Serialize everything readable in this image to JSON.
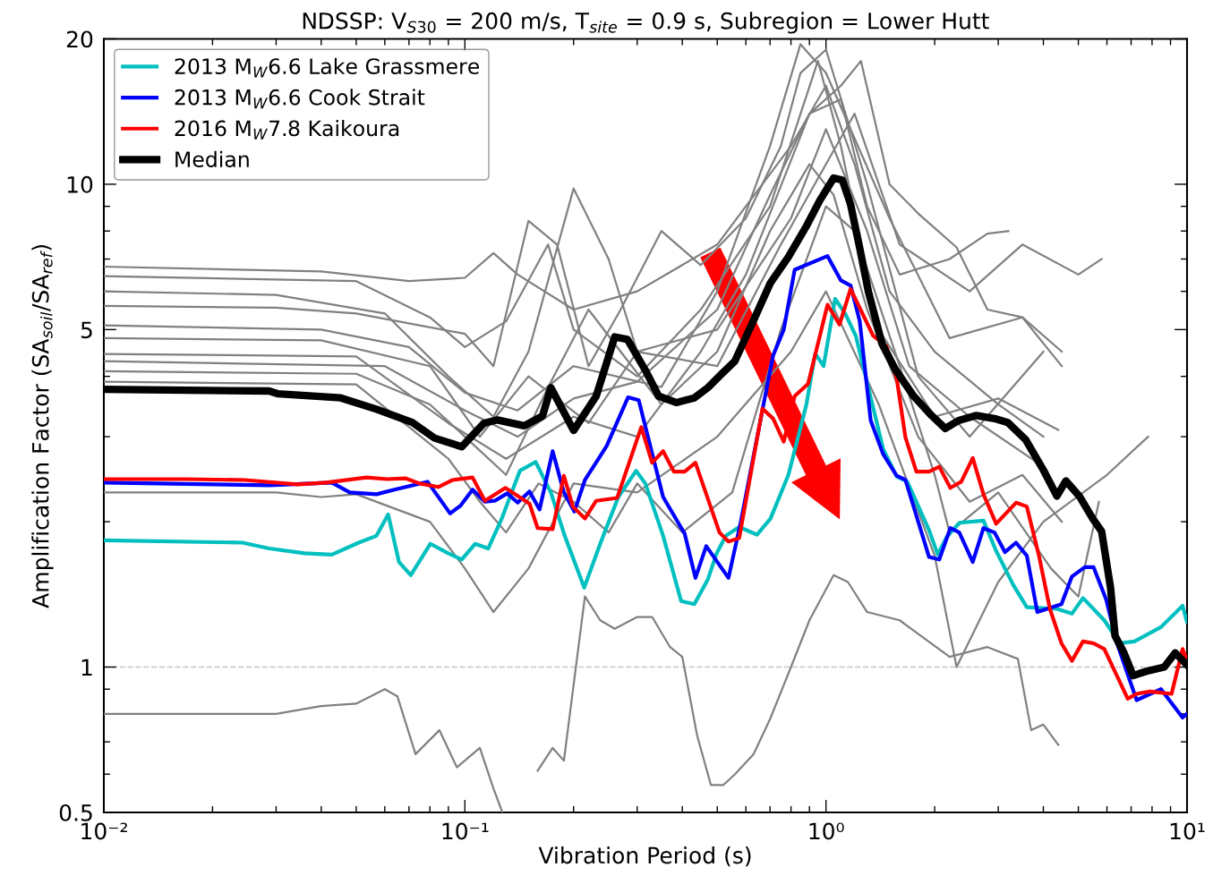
{
  "chart_data": {
    "type": "line",
    "title": "NDSSP: V$_{S30}$ = 200 m/s, T$_{site}$ = 0.9 s, Subregion = Lower Hutt",
    "xlabel": "Vibration Period (s)",
    "ylabel": "Amplification Factor (SA$_{soil}$/SA$_{ref}$)",
    "log": "xy",
    "xlim": [
      0.01,
      10
    ],
    "ylim": [
      0.5,
      20
    ],
    "xticks": [
      {
        "value": 0.01,
        "label": "10⁻²"
      },
      {
        "value": 0.1,
        "label": "10⁻¹"
      },
      {
        "value": 1,
        "label": "10⁰"
      },
      {
        "value": 10,
        "label": "10¹"
      }
    ],
    "yticks": [
      0.5,
      1,
      5,
      10,
      20
    ],
    "grid": false,
    "legend": "top left",
    "marker": "none",
    "line_style": "solid",
    "ref_lines": [
      {
        "axis": "y",
        "value": 1,
        "color": "#c8c8c8",
        "line_style": "dashed"
      }
    ],
    "series": [
      {
        "color": "#808080",
        "x": [
          0.01,
          0.04,
          0.07,
          0.1,
          0.12,
          0.14,
          0.2,
          0.3,
          0.5,
          0.8,
          1.0,
          1.2,
          1.5,
          2,
          3,
          4
        ],
        "values": [
          6.75,
          6.6,
          6.3,
          6.4,
          7.2,
          6.5,
          5.5,
          6.0,
          7.5,
          12,
          16,
          11,
          6,
          4.5,
          3.5,
          3.0
        ]
      },
      {
        "color": "#808080",
        "x": [
          0.01,
          0.05,
          0.08,
          0.1,
          0.13,
          0.17,
          0.2,
          0.3,
          0.45,
          0.7,
          0.95,
          1.1,
          1.4,
          2,
          3,
          4.4
        ],
        "values": [
          6.45,
          6.3,
          5.3,
          4.6,
          5.2,
          7.5,
          5.0,
          4.0,
          5.5,
          9,
          18,
          12,
          5,
          3.3,
          3.6,
          3.1
        ]
      },
      {
        "color": "#808080",
        "x": [
          0.01,
          0.03,
          0.06,
          0.09,
          0.12,
          0.15,
          0.2,
          0.25,
          0.3,
          0.5,
          0.8,
          1.0,
          1.3,
          1.7,
          2.5,
          4
        ],
        "values": [
          6.0,
          5.9,
          5.4,
          4.0,
          3.3,
          4.5,
          9.8,
          7.0,
          4.5,
          5.0,
          8.5,
          13,
          8,
          4.2,
          3.3,
          2.6
        ]
      },
      {
        "color": "#808080",
        "x": [
          0.01,
          0.04,
          0.07,
          0.1,
          0.14,
          0.2,
          0.35,
          0.5,
          0.7,
          0.85,
          1.0,
          1.5,
          2.2,
          3.5,
          4.5
        ],
        "values": [
          5.1,
          5.0,
          4.6,
          3.7,
          3.4,
          4.2,
          3.8,
          6.0,
          12,
          19.5,
          17,
          8.5,
          4.8,
          5.3,
          4.5
        ]
      },
      {
        "color": "#808080",
        "x": [
          0.01,
          0.04,
          0.08,
          0.11,
          0.15,
          0.22,
          0.3,
          0.5,
          0.75,
          1.0,
          1.2,
          1.6,
          2.5,
          3.5,
          5,
          5.8
        ],
        "values": [
          4.8,
          4.75,
          4.2,
          3.0,
          4.0,
          3.2,
          4.5,
          4.2,
          7.5,
          11,
          14,
          7.5,
          6.0,
          7.5,
          6.5,
          7.0
        ]
      },
      {
        "color": "#808080",
        "x": [
          0.01,
          0.05,
          0.09,
          0.13,
          0.2,
          0.3,
          0.45,
          0.6,
          0.9,
          1.1,
          1.3,
          1.6,
          2.2,
          2.8,
          3.2
        ],
        "values": [
          4.45,
          4.4,
          3.2,
          2.7,
          3.3,
          3.0,
          4.5,
          6.5,
          14,
          15,
          9,
          6.5,
          7.0,
          7.9,
          8.0
        ]
      },
      {
        "color": "#808080",
        "x": [
          0.01,
          0.03,
          0.04,
          0.05,
          0.08,
          0.1,
          0.12,
          0.15,
          0.2,
          0.3,
          0.5,
          0.8,
          1.0,
          1.4,
          2,
          2.3,
          3,
          4,
          6,
          7.8
        ],
        "values": [
          2.3,
          2.3,
          2.25,
          2.28,
          2.0,
          1.6,
          1.3,
          1.6,
          2.4,
          2.3,
          3.0,
          4.5,
          6.0,
          3.5,
          1.7,
          1.0,
          1.5,
          2.0,
          2.5,
          3.0
        ]
      },
      {
        "color": "#808080",
        "x": [
          0.01,
          0.03,
          0.04,
          0.05,
          0.06,
          0.065,
          0.073,
          0.085,
          0.095,
          0.11,
          0.12,
          0.127,
          0.14,
          0.159,
          0.175,
          0.188,
          0.215,
          0.237,
          0.26,
          0.3,
          0.33,
          0.37,
          0.4,
          0.44,
          0.48,
          0.52,
          0.56,
          0.63,
          0.7,
          0.8,
          0.9,
          1.05,
          1.15,
          1.3,
          1.6,
          2.2,
          2.8,
          3.4,
          3.7,
          4.0,
          4.4
        ],
        "values": [
          0.8,
          0.8,
          0.83,
          0.84,
          0.9,
          0.87,
          0.66,
          0.74,
          0.62,
          0.68,
          0.56,
          0.5,
          null,
          0.61,
          0.68,
          0.64,
          1.4,
          1.25,
          1.2,
          1.27,
          1.27,
          1.1,
          1.05,
          0.72,
          0.57,
          0.57,
          0.6,
          0.66,
          0.78,
          1.0,
          1.25,
          1.55,
          1.5,
          1.3,
          1.25,
          1.05,
          1.1,
          1.04,
          0.74,
          0.76,
          0.69
        ]
      },
      {
        "color": "#808080",
        "x": [
          0.01,
          0.05,
          0.08,
          0.1,
          0.13,
          0.17,
          0.22,
          0.27,
          0.35,
          0.5,
          0.7,
          0.9,
          1.05,
          1.3,
          1.8,
          2.5,
          3.5,
          4.5
        ],
        "values": [
          4.1,
          4.05,
          3.5,
          3.0,
          2.5,
          3.8,
          5.5,
          4.5,
          3.5,
          4.5,
          8,
          11,
          9.5,
          5.5,
          3.0,
          2.2,
          2.5,
          2.0
        ]
      },
      {
        "color": "#808080",
        "x": [
          0.01,
          0.05,
          0.09,
          0.11,
          0.13,
          0.16,
          0.2,
          0.25,
          0.3,
          0.4,
          0.55,
          0.75,
          1.0,
          1.2,
          1.6,
          2.0,
          2.2,
          3.0,
          4.2,
          5,
          5.7
        ],
        "values": [
          3.9,
          3.85,
          2.7,
          2.2,
          1.9,
          2.4,
          2.2,
          1.9,
          2.4,
          1.9,
          2.3,
          5,
          9,
          8,
          4.2,
          2.5,
          1.9,
          2.3,
          1.6,
          1.4,
          2.2
        ]
      },
      {
        "color": "#808080",
        "x": [
          0.01,
          0.03,
          0.05,
          0.1,
          0.12,
          0.15,
          0.18,
          0.22,
          0.27,
          0.35,
          0.45,
          0.6,
          0.75,
          0.85,
          1.0,
          1.3,
          1.8,
          2.5,
          4.0
        ],
        "values": [
          5.6,
          5.55,
          5.4,
          4.9,
          4.2,
          8.4,
          7.5,
          4.2,
          5.5,
          8,
          6.8,
          8.5,
          12,
          17,
          19,
          10,
          4.0,
          3.0,
          4.5
        ]
      },
      {
        "color": "#808080",
        "x": [
          0.01,
          0.06,
          0.1,
          0.14,
          0.2,
          0.3,
          0.5,
          0.7,
          0.9,
          1.1,
          1.25,
          1.5,
          1.8,
          2.3,
          2.8,
          3.5,
          4.5
        ],
        "values": [
          4.3,
          4.2,
          3.4,
          3.0,
          3.6,
          3.9,
          5.5,
          9.5,
          14,
          16,
          18,
          10,
          8.7,
          7.4,
          5.5,
          5.3,
          4.2
        ]
      },
      {
        "name": "2013 M$_{W}$6.6 Lake Grassmere",
        "color": "#00bfbf",
        "x": [
          0.01,
          0.0242,
          0.0287,
          0.036,
          0.0428,
          0.0508,
          0.0569,
          0.0613,
          0.0657,
          0.0708,
          0.0802,
          0.0899,
          0.098,
          0.1067,
          0.116,
          0.1265,
          0.142,
          0.157,
          0.173,
          0.189,
          0.214,
          0.237,
          0.266,
          0.298,
          0.316,
          0.354,
          0.397,
          0.432,
          0.471,
          0.498,
          0.528,
          0.575,
          0.644,
          0.702,
          0.787,
          0.882,
          0.934,
          0.985,
          1.06,
          1.13,
          1.21,
          1.44,
          1.57,
          1.68,
          1.93,
          2.04,
          2.16,
          2.34,
          2.73,
          2.96,
          3.3,
          3.6,
          4.36,
          4.8,
          5.15,
          5.9,
          6.5,
          7.15,
          8.47,
          9.72,
          10
        ],
        "values": [
          1.83,
          1.81,
          1.76,
          1.72,
          1.71,
          1.81,
          1.87,
          2.07,
          1.65,
          1.55,
          1.8,
          1.72,
          1.67,
          1.8,
          1.76,
          2.03,
          2.55,
          2.66,
          2.3,
          1.87,
          1.46,
          1.8,
          2.25,
          2.55,
          2.4,
          1.87,
          1.37,
          1.35,
          1.52,
          1.72,
          1.87,
          1.95,
          1.88,
          2.03,
          2.5,
          3.49,
          4.46,
          4.2,
          5.79,
          5.4,
          4.85,
          2.83,
          2.48,
          2.42,
          1.92,
          1.71,
          1.86,
          1.99,
          2.01,
          1.74,
          1.48,
          1.33,
          1.32,
          1.29,
          1.39,
          1.25,
          1.12,
          1.13,
          1.21,
          1.34,
          1.24
        ]
      },
      {
        "name": "2013 M$_{W}$6.6 Cook Strait",
        "color": "#0000ff",
        "x": [
          0.01,
          0.0287,
          0.0428,
          0.048,
          0.0569,
          0.0638,
          0.0788,
          0.091,
          0.0973,
          0.105,
          0.1136,
          0.121,
          0.131,
          0.14,
          0.151,
          0.161,
          0.175,
          0.188,
          0.201,
          0.215,
          0.247,
          0.283,
          0.303,
          0.354,
          0.406,
          0.435,
          0.466,
          0.537,
          0.581,
          0.667,
          0.714,
          0.764,
          0.819,
          1.01,
          1.1,
          1.17,
          1.24,
          1.33,
          1.44,
          1.57,
          1.66,
          1.93,
          2.06,
          2.21,
          2.34,
          2.55,
          2.73,
          2.93,
          3.13,
          3.36,
          3.6,
          3.85,
          4.49,
          4.8,
          5.21,
          5.51,
          5.97,
          6.4,
          7.25,
          8.47,
          9.72,
          10
        ],
        "values": [
          2.41,
          2.38,
          2.41,
          2.3,
          2.28,
          2.33,
          2.42,
          2.08,
          2.16,
          2.33,
          2.2,
          2.21,
          2.29,
          2.19,
          2.31,
          2.12,
          2.8,
          2.3,
          2.1,
          2.44,
          2.87,
          3.62,
          3.57,
          2.25,
          1.89,
          1.53,
          1.78,
          1.53,
          2.0,
          3.41,
          4.42,
          5.0,
          6.65,
          7.1,
          6.32,
          6.17,
          5.21,
          3.24,
          2.76,
          2.49,
          2.44,
          1.69,
          1.67,
          1.94,
          1.9,
          1.65,
          1.94,
          1.9,
          1.73,
          1.81,
          1.7,
          1.3,
          1.35,
          1.54,
          1.61,
          1.61,
          1.38,
          1.12,
          0.854,
          0.9,
          0.786,
          0.8
        ]
      },
      {
        "name": "2016 M$_{W}$7.8 Kaikoura",
        "color": "#ff0000",
        "x": [
          0.0101,
          0.0168,
          0.0246,
          0.0344,
          0.0413,
          0.0534,
          0.061,
          0.0684,
          0.0749,
          0.0844,
          0.0925,
          0.105,
          0.1136,
          0.1295,
          0.151,
          0.159,
          0.175,
          0.188,
          0.199,
          0.215,
          0.231,
          0.264,
          0.308,
          0.33,
          0.354,
          0.379,
          0.406,
          0.435,
          0.507,
          0.537,
          0.575,
          0.667,
          0.714,
          0.764,
          0.819,
          0.892,
          1.01,
          1.09,
          1.17,
          1.35,
          1.47,
          1.57,
          1.66,
          1.78,
          1.93,
          2.06,
          2.21,
          2.37,
          2.55,
          2.73,
          2.96,
          3.36,
          3.6,
          3.89,
          4.17,
          4.49,
          4.8,
          5.15,
          5.51,
          5.9,
          6.85,
          7.25,
          7.9,
          9.06,
          9.72,
          10
        ],
        "values": [
          2.45,
          2.45,
          2.44,
          2.39,
          2.41,
          2.47,
          2.45,
          2.46,
          2.4,
          2.36,
          2.44,
          2.47,
          2.21,
          2.35,
          2.18,
          1.94,
          1.93,
          2.49,
          2.15,
          2.03,
          2.21,
          2.24,
          3.14,
          2.65,
          2.8,
          2.54,
          2.54,
          2.65,
          1.9,
          1.82,
          1.85,
          3.43,
          3.27,
          2.93,
          3.64,
          3.86,
          5.63,
          5.12,
          6.07,
          4.86,
          4.62,
          3.96,
          2.99,
          2.54,
          2.54,
          2.6,
          2.35,
          2.42,
          2.71,
          2.28,
          1.98,
          2.19,
          2.15,
          1.7,
          1.32,
          1.12,
          1.03,
          1.13,
          1.12,
          1.09,
          0.86,
          0.88,
          0.89,
          0.88,
          1.09,
          1.03
        ]
      },
      {
        "name": "Median",
        "color": "#000000",
        "x": [
          0.01,
          0.0287,
          0.0304,
          0.0453,
          0.0569,
          0.0715,
          0.0824,
          0.098,
          0.113,
          0.123,
          0.146,
          0.164,
          0.173,
          0.2,
          0.231,
          0.26,
          0.282,
          0.316,
          0.344,
          0.385,
          0.432,
          0.471,
          0.513,
          0.559,
          0.627,
          0.702,
          0.787,
          0.882,
          0.962,
          1.05,
          1.11,
          1.17,
          1.24,
          1.31,
          1.43,
          1.56,
          1.75,
          1.96,
          2.14,
          2.33,
          2.61,
          2.93,
          3.19,
          3.57,
          4.0,
          4.36,
          4.62,
          5.03,
          5.48,
          5.8,
          6.14,
          6.32,
          6.69,
          7.09,
          7.72,
          8.65,
          9.27,
          10
        ],
        "values": [
          3.76,
          3.73,
          3.68,
          3.61,
          3.42,
          3.21,
          2.98,
          2.86,
          3.2,
          3.25,
          3.16,
          3.31,
          3.79,
          3.09,
          3.64,
          4.83,
          4.77,
          4.12,
          3.64,
          3.53,
          3.61,
          3.79,
          4.04,
          4.3,
          5.18,
          6.25,
          7.07,
          8.18,
          9.26,
          10.3,
          10.2,
          9.08,
          7.38,
          6.0,
          4.67,
          4.12,
          3.64,
          3.32,
          3.12,
          3.24,
          3.32,
          3.27,
          3.21,
          2.96,
          2.56,
          2.26,
          2.43,
          2.26,
          2.03,
          1.91,
          1.46,
          1.16,
          1.07,
          0.96,
          0.98,
          1.0,
          1.07,
          1.01
        ]
      }
    ]
  }
}
